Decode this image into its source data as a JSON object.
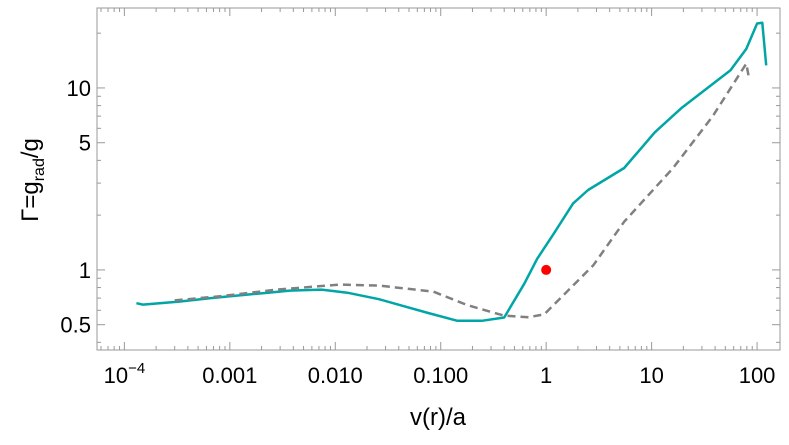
{
  "chart_data": {
    "type": "line",
    "title": "",
    "xlabel": "v(r)/a",
    "ylabel_parts": {
      "main": "Γ=g",
      "sub": "rad",
      "tail": "/g"
    },
    "xscale": "log",
    "yscale": "log",
    "xlim": [
      5.5e-05,
      165
    ],
    "ylim": [
      0.363,
      27.5
    ],
    "grid": false,
    "legend": "none",
    "x_ticks": [
      {
        "value": 0.0001,
        "label_base": "10",
        "label_exp": "−4"
      },
      {
        "value": 0.001,
        "label": "0.001"
      },
      {
        "value": 0.01,
        "label": "0.010"
      },
      {
        "value": 0.1,
        "label": "0.100"
      },
      {
        "value": 1,
        "label": "1"
      },
      {
        "value": 10,
        "label": "10"
      },
      {
        "value": 100,
        "label": "100"
      }
    ],
    "y_ticks": [
      {
        "value": 0.5,
        "label": "0.5"
      },
      {
        "value": 1,
        "label": "1"
      },
      {
        "value": 5,
        "label": "5"
      },
      {
        "value": 10,
        "label": "10"
      }
    ],
    "series": [
      {
        "style": "solid",
        "color": "#00a6a6",
        "points": [
          [
            0.00013,
            0.656
          ],
          [
            0.00015,
            0.645
          ],
          [
            0.00033,
            0.67
          ],
          [
            0.00066,
            0.7
          ],
          [
            0.0023,
            0.75
          ],
          [
            0.0037,
            0.77
          ],
          [
            0.0074,
            0.78
          ],
          [
            0.013,
            0.75
          ],
          [
            0.026,
            0.69
          ],
          [
            0.043,
            0.636
          ],
          [
            0.076,
            0.58
          ],
          [
            0.144,
            0.525
          ],
          [
            0.245,
            0.525
          ],
          [
            0.4,
            0.548
          ],
          [
            0.62,
            0.84
          ],
          [
            0.82,
            1.15
          ],
          [
            1.16,
            1.56
          ],
          [
            1.8,
            2.32
          ],
          [
            2.5,
            2.75
          ],
          [
            5.5,
            3.63
          ],
          [
            10.7,
            5.7
          ],
          [
            19.4,
            7.8
          ],
          [
            56,
            12.5
          ],
          [
            79,
            16.4
          ],
          [
            100,
            22.6
          ],
          [
            112,
            22.8
          ],
          [
            122,
            13.3
          ]
        ]
      },
      {
        "style": "dashed",
        "color": "#808080",
        "points": [
          [
            0.0003,
            0.68
          ],
          [
            0.00087,
            0.72
          ],
          [
            0.0028,
            0.78
          ],
          [
            0.011,
            0.83
          ],
          [
            0.026,
            0.82
          ],
          [
            0.085,
            0.76
          ],
          [
            0.18,
            0.64
          ],
          [
            0.4,
            0.56
          ],
          [
            0.68,
            0.55
          ],
          [
            0.96,
            0.57
          ],
          [
            2.8,
            1.06
          ],
          [
            5.5,
            1.84
          ],
          [
            16,
            3.63
          ],
          [
            38,
            7.0
          ],
          [
            79,
            13.6
          ],
          [
            83,
            11.7
          ]
        ]
      }
    ],
    "markers": [
      {
        "x": 1,
        "y": 1,
        "color": "#ff0000"
      }
    ]
  }
}
